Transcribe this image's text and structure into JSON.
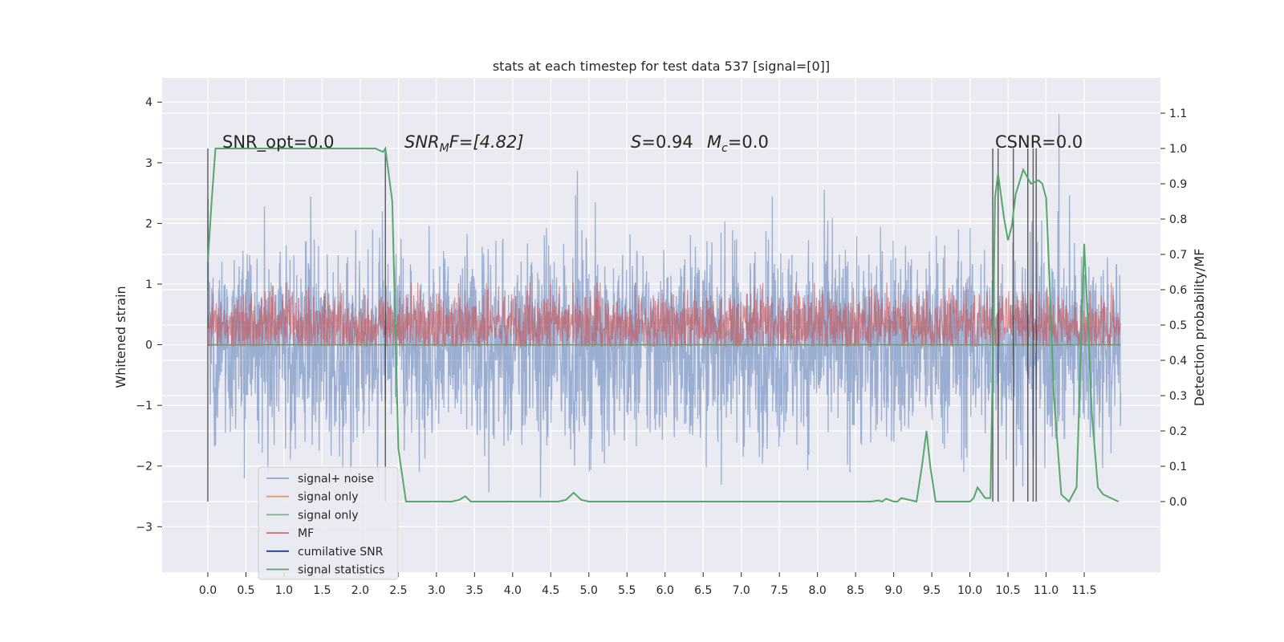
{
  "chart_data": {
    "type": "line",
    "title": "stats at each timestep for test data 537 [signal=[0]]",
    "xlabel": "",
    "ylabel": "Whitened strain",
    "ylabel_right": "Detection probability/MF",
    "xlim": [
      -0.6,
      12.5
    ],
    "ylim": [
      -3.75,
      4.4
    ],
    "ylim_right": [
      -0.2,
      1.2
    ],
    "x_ticks": [
      "0.0",
      "0.5",
      "1.0",
      "1.5",
      "2.0",
      "2.5",
      "3.0",
      "3.5",
      "4.0",
      "4.5",
      "5.0",
      "5.5",
      "6.0",
      "6.5",
      "7.0",
      "7.5",
      "8.0",
      "8.5",
      "9.0",
      "9.5",
      "10.0",
      "10.5",
      "11.0",
      "11.5"
    ],
    "y_ticks": [
      "4",
      "3",
      "2",
      "1",
      "0",
      "−1",
      "−2",
      "−3"
    ],
    "y_ticks_right": [
      "1.1",
      "1.0",
      "0.9",
      "0.8",
      "0.7",
      "0.6",
      "0.5",
      "0.4",
      "0.3",
      "0.2",
      "0.1",
      "0.0"
    ],
    "grid": true,
    "legend_placement": "lower-left",
    "annotations": [
      {
        "text": "SNR_opt=0.0"
      },
      {
        "text": "SNR",
        "sub": "M",
        "tail": "F=[4.82]"
      },
      {
        "text": "S",
        "tail": "=0.94"
      },
      {
        "text": "M",
        "sub": "c",
        "tail": "=0.0"
      },
      {
        "text": "CSNR=0.0"
      }
    ],
    "series": [
      {
        "name": "signal+ noise",
        "color": "#4c72b0",
        "style": "dense-noise",
        "x_range": [
          0.0,
          11.98
        ],
        "y_band": [
          -2.3,
          2.3
        ]
      },
      {
        "name": "signal only",
        "color": "#dd8452",
        "values_note": "flat at 0"
      },
      {
        "name": "signal only",
        "color": "#55a868",
        "values_note": "flat at 0"
      },
      {
        "name": "MF",
        "color": "#c44e52",
        "style": "dense-noise",
        "y_band": [
          0.0,
          0.6
        ]
      },
      {
        "name": "cumilative SNR",
        "color": "#4c72b0"
      },
      {
        "name": "signal statistics",
        "color": "#55a868",
        "axis": "right",
        "x": [
          0.0,
          0.05,
          0.1,
          0.3,
          0.6,
          1.0,
          1.5,
          2.0,
          2.2,
          2.3,
          2.33,
          2.36,
          2.42,
          2.5,
          2.6,
          2.8,
          3.0,
          3.2,
          3.3,
          3.38,
          3.45,
          3.6,
          4.0,
          4.4,
          4.6,
          4.7,
          4.8,
          4.9,
          5.0,
          5.5,
          6.0,
          7.0,
          8.0,
          8.5,
          8.7,
          8.8,
          8.85,
          8.9,
          9.0,
          9.05,
          9.1,
          9.3,
          9.37,
          9.43,
          9.48,
          9.55,
          9.7,
          9.9,
          10.0,
          10.05,
          10.1,
          10.2,
          10.27,
          10.3,
          10.33,
          10.37,
          10.4,
          10.45,
          10.5,
          10.55,
          10.6,
          10.7,
          10.8,
          10.9,
          10.95,
          11.0,
          11.05,
          11.1,
          11.2,
          11.3,
          11.4,
          11.5,
          11.55,
          11.6,
          11.68,
          11.75,
          11.85,
          11.95
        ],
        "values": [
          0.68,
          0.85,
          1.0,
          1.0,
          1.0,
          1.0,
          1.0,
          1.0,
          1.0,
          0.99,
          1.0,
          0.95,
          0.85,
          0.15,
          0.0,
          0.0,
          0.0,
          0.0,
          0.005,
          0.015,
          0.0,
          0.0,
          0.0,
          0.0,
          0.0,
          0.005,
          0.025,
          0.005,
          0.0,
          0.0,
          0.0,
          0.0,
          0.0,
          0.0,
          0.0,
          0.003,
          0.0,
          0.008,
          0.0,
          0.0,
          0.01,
          0.0,
          0.1,
          0.2,
          0.1,
          0.0,
          0.0,
          0.0,
          0.0,
          0.01,
          0.04,
          0.01,
          0.01,
          0.4,
          0.86,
          0.93,
          0.88,
          0.8,
          0.74,
          0.78,
          0.87,
          0.94,
          0.9,
          0.91,
          0.9,
          0.86,
          0.6,
          0.3,
          0.02,
          0.0,
          0.04,
          0.73,
          0.5,
          0.25,
          0.04,
          0.02,
          0.01,
          0.0
        ]
      }
    ],
    "vertical_markers_x": [
      0.0,
      2.33,
      10.3,
      10.37,
      10.57,
      10.76,
      10.83,
      10.87
    ]
  }
}
